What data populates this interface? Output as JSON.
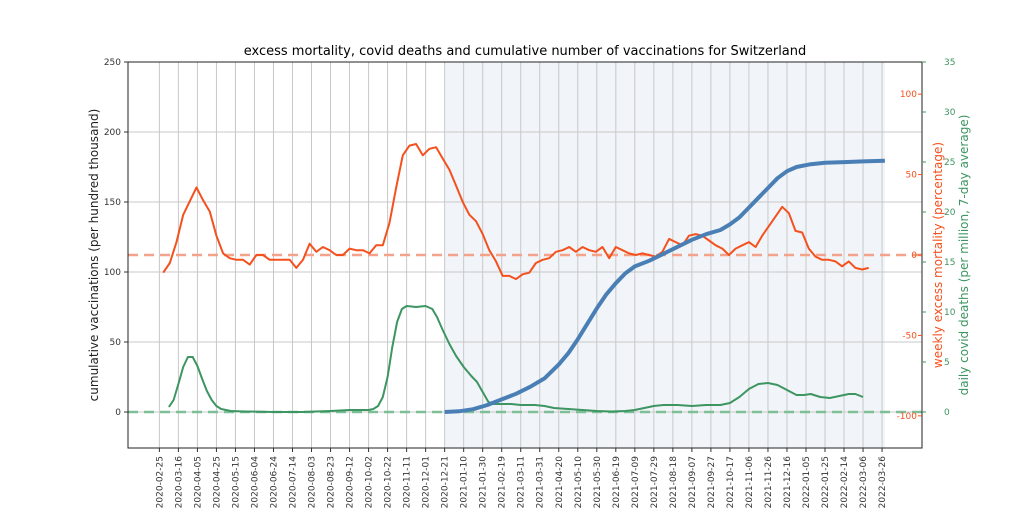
{
  "chart_data": {
    "type": "line",
    "title": "excess mortality, covid deaths and cumulative number of vaccinations for Switzerland",
    "x_type": "date",
    "x_start_date": "2020-02-25",
    "xlim_days": [
      -33,
      802
    ],
    "x_tick_labels": [
      "2020-02-25",
      "2020-03-16",
      "2020-04-05",
      "2020-04-25",
      "2020-05-15",
      "2020-06-04",
      "2020-06-24",
      "2020-07-14",
      "2020-08-03",
      "2020-08-23",
      "2020-09-12",
      "2020-10-02",
      "2020-10-22",
      "2020-11-11",
      "2020-12-01",
      "2020-12-21",
      "2021-01-10",
      "2021-01-30",
      "2021-02-19",
      "2021-03-11",
      "2021-03-31",
      "2021-04-20",
      "2021-05-10",
      "2021-05-30",
      "2021-06-19",
      "2021-07-09",
      "2021-07-29",
      "2021-08-18",
      "2021-09-07",
      "2021-09-27",
      "2021-10-17",
      "2021-11-06",
      "2021-11-26",
      "2021-12-16",
      "2022-01-05",
      "2022-01-25",
      "2022-02-14",
      "2022-03-06",
      "2022-03-26"
    ],
    "x_tick_step_days": 20,
    "shaded_region_days": [
      300,
      763
    ],
    "axes": {
      "left": {
        "label": "cumulative vaccinations (per hundred thousand)",
        "ylim": [
          -25.7,
          250
        ],
        "ticks": [
          0,
          50,
          100,
          150,
          200,
          250
        ],
        "color": "#333333"
      },
      "right1": {
        "label": "weekly excess mortality (percentage)",
        "ylim": [
          -120,
          120
        ],
        "ticks": [
          -100,
          -50,
          0,
          50,
          100
        ],
        "color": "#f4511e"
      },
      "right2": {
        "label": "daily covid deaths (per million, 7-day average)",
        "ylim": [
          -3.6,
          35
        ],
        "ticks": [
          0,
          5,
          10,
          15,
          20,
          25,
          30,
          35
        ],
        "color": "#3d9561"
      }
    },
    "grid": true,
    "series": [
      {
        "name": "weekly excess mortality",
        "axis": "right1",
        "color": "#f4511e",
        "points": [
          [
            4,
            -11
          ],
          [
            11,
            -5
          ],
          [
            18,
            8
          ],
          [
            25,
            25
          ],
          [
            39,
            42
          ],
          [
            46,
            34
          ],
          [
            53,
            27
          ],
          [
            60,
            12
          ],
          [
            67,
            1
          ],
          [
            74,
            -2
          ],
          [
            81,
            -3
          ],
          [
            88,
            -3
          ],
          [
            95,
            -6
          ],
          [
            102,
            0
          ],
          [
            109,
            0
          ],
          [
            116,
            -3
          ],
          [
            123,
            -3
          ],
          [
            130,
            -3
          ],
          [
            137,
            -3
          ],
          [
            144,
            -8
          ],
          [
            151,
            -3
          ],
          [
            158,
            7
          ],
          [
            165,
            2
          ],
          [
            172,
            5
          ],
          [
            179,
            3
          ],
          [
            186,
            0
          ],
          [
            193,
            0
          ],
          [
            200,
            4
          ],
          [
            207,
            3
          ],
          [
            214,
            3
          ],
          [
            221,
            1
          ],
          [
            228,
            6
          ],
          [
            235,
            6
          ],
          [
            242,
            20
          ],
          [
            249,
            42
          ],
          [
            256,
            62
          ],
          [
            263,
            68
          ],
          [
            270,
            69
          ],
          [
            277,
            62
          ],
          [
            284,
            66
          ],
          [
            291,
            67
          ],
          [
            298,
            60
          ],
          [
            305,
            53
          ],
          [
            312,
            43
          ],
          [
            319,
            33
          ],
          [
            326,
            25
          ],
          [
            333,
            21
          ],
          [
            340,
            13
          ],
          [
            347,
            3
          ],
          [
            354,
            -4
          ],
          [
            361,
            -13
          ],
          [
            368,
            -13
          ],
          [
            375,
            -15
          ],
          [
            382,
            -12
          ],
          [
            389,
            -11
          ],
          [
            396,
            -5
          ],
          [
            403,
            -3
          ],
          [
            410,
            -2
          ],
          [
            417,
            2
          ],
          [
            424,
            3
          ],
          [
            431,
            5
          ],
          [
            438,
            2
          ],
          [
            445,
            5
          ],
          [
            452,
            3
          ],
          [
            459,
            2
          ],
          [
            466,
            5
          ],
          [
            473,
            -2
          ],
          [
            480,
            5
          ],
          [
            487,
            3
          ],
          [
            494,
            1
          ],
          [
            501,
            0
          ],
          [
            508,
            1
          ],
          [
            515,
            0
          ],
          [
            522,
            -1
          ],
          [
            529,
            2
          ],
          [
            536,
            10
          ],
          [
            543,
            8
          ],
          [
            550,
            6
          ],
          [
            557,
            12
          ],
          [
            564,
            13
          ],
          [
            571,
            12
          ],
          [
            578,
            9
          ],
          [
            585,
            6
          ],
          [
            592,
            4
          ],
          [
            599,
            0
          ],
          [
            606,
            4
          ],
          [
            613,
            6
          ],
          [
            620,
            8
          ],
          [
            627,
            5
          ],
          [
            634,
            12
          ],
          [
            641,
            18
          ],
          [
            648,
            24
          ],
          [
            655,
            30
          ],
          [
            662,
            26
          ],
          [
            669,
            15
          ],
          [
            676,
            14
          ],
          [
            683,
            4
          ],
          [
            690,
            -1
          ],
          [
            697,
            -3
          ],
          [
            704,
            -3
          ],
          [
            711,
            -4
          ],
          [
            718,
            -7
          ],
          [
            725,
            -4
          ],
          [
            732,
            -8
          ],
          [
            739,
            -9
          ],
          [
            746,
            -8
          ]
        ]
      },
      {
        "name": "daily covid deaths (7-day average)",
        "axis": "right2",
        "color": "#3d9561",
        "points": [
          [
            10,
            0.5
          ],
          [
            15,
            1.2
          ],
          [
            20,
            2.8
          ],
          [
            25,
            4.5
          ],
          [
            30,
            5.5
          ],
          [
            35,
            5.5
          ],
          [
            40,
            4.6
          ],
          [
            45,
            3.3
          ],
          [
            50,
            2.1
          ],
          [
            55,
            1.2
          ],
          [
            60,
            0.6
          ],
          [
            65,
            0.3
          ],
          [
            75,
            0.1
          ],
          [
            90,
            0.05
          ],
          [
            120,
            0.0
          ],
          [
            150,
            0.0
          ],
          [
            180,
            0.1
          ],
          [
            200,
            0.2
          ],
          [
            220,
            0.2
          ],
          [
            225,
            0.3
          ],
          [
            230,
            0.6
          ],
          [
            235,
            1.5
          ],
          [
            240,
            3.5
          ],
          [
            245,
            6.5
          ],
          [
            250,
            9.0
          ],
          [
            255,
            10.3
          ],
          [
            260,
            10.6
          ],
          [
            270,
            10.5
          ],
          [
            280,
            10.6
          ],
          [
            287,
            10.3
          ],
          [
            292,
            9.5
          ],
          [
            298,
            8.2
          ],
          [
            305,
            6.8
          ],
          [
            312,
            5.6
          ],
          [
            320,
            4.5
          ],
          [
            328,
            3.6
          ],
          [
            334,
            3.0
          ],
          [
            340,
            2.0
          ],
          [
            346,
            1.0
          ],
          [
            352,
            0.8
          ],
          [
            360,
            0.8
          ],
          [
            370,
            0.8
          ],
          [
            380,
            0.7
          ],
          [
            395,
            0.7
          ],
          [
            405,
            0.6
          ],
          [
            415,
            0.4
          ],
          [
            430,
            0.3
          ],
          [
            445,
            0.2
          ],
          [
            460,
            0.1
          ],
          [
            475,
            0.05
          ],
          [
            490,
            0.1
          ],
          [
            500,
            0.2
          ],
          [
            510,
            0.4
          ],
          [
            520,
            0.6
          ],
          [
            530,
            0.7
          ],
          [
            545,
            0.7
          ],
          [
            560,
            0.6
          ],
          [
            575,
            0.7
          ],
          [
            590,
            0.7
          ],
          [
            600,
            0.9
          ],
          [
            610,
            1.5
          ],
          [
            620,
            2.3
          ],
          [
            630,
            2.8
          ],
          [
            640,
            2.9
          ],
          [
            650,
            2.7
          ],
          [
            660,
            2.2
          ],
          [
            670,
            1.7
          ],
          [
            678,
            1.7
          ],
          [
            685,
            1.8
          ],
          [
            695,
            1.5
          ],
          [
            705,
            1.4
          ],
          [
            715,
            1.6
          ],
          [
            725,
            1.8
          ],
          [
            732,
            1.8
          ],
          [
            740,
            1.5
          ]
        ]
      },
      {
        "name": "cumulative vaccinations",
        "axis": "left",
        "color": "#4a7fb5",
        "points": [
          [
            300,
            0
          ],
          [
            315,
            0.5
          ],
          [
            330,
            2
          ],
          [
            345,
            5
          ],
          [
            360,
            9
          ],
          [
            375,
            13
          ],
          [
            390,
            18
          ],
          [
            405,
            24
          ],
          [
            420,
            34
          ],
          [
            430,
            42
          ],
          [
            440,
            52
          ],
          [
            450,
            63
          ],
          [
            460,
            74
          ],
          [
            470,
            84
          ],
          [
            480,
            92
          ],
          [
            490,
            99
          ],
          [
            500,
            104
          ],
          [
            515,
            108
          ],
          [
            530,
            113
          ],
          [
            545,
            118
          ],
          [
            560,
            123
          ],
          [
            575,
            127
          ],
          [
            590,
            130
          ],
          [
            600,
            134
          ],
          [
            610,
            139
          ],
          [
            620,
            146
          ],
          [
            630,
            153
          ],
          [
            640,
            160
          ],
          [
            650,
            167
          ],
          [
            660,
            172
          ],
          [
            670,
            175
          ],
          [
            685,
            177
          ],
          [
            700,
            178
          ],
          [
            720,
            178.5
          ],
          [
            740,
            179
          ],
          [
            763,
            179.5
          ]
        ]
      }
    ],
    "reference_lines": [
      {
        "axis": "right1",
        "value": 0,
        "style": "dashed",
        "color": "#f4a28a"
      },
      {
        "axis": "right2",
        "value": 0,
        "style": "dashed",
        "color": "#7fbf98"
      }
    ]
  }
}
